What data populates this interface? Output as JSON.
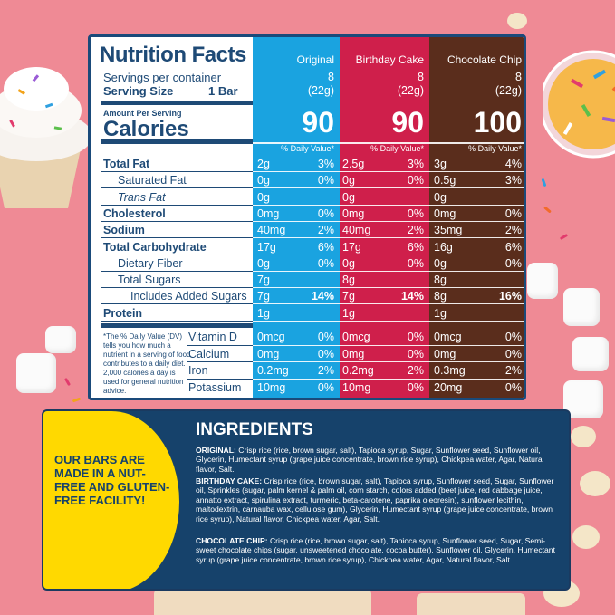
{
  "nutrition": {
    "title": "Nutrition Facts",
    "servings_label": "Servings per container",
    "serving_size_label": "Serving Size",
    "serving_size_value": "1 Bar",
    "amount_per_serving": "Amount Per Serving",
    "calories_label": "Calories",
    "dv_header": "% Daily Value*",
    "columns": [
      {
        "name": "Original",
        "servings": "8",
        "serving_grams": "(22g)",
        "calories": "90"
      },
      {
        "name": "Birthday Cake",
        "servings": "8",
        "serving_grams": "(22g)",
        "calories": "90"
      },
      {
        "name": "Chocolate Chip",
        "servings": "8",
        "serving_grams": "(22g)",
        "calories": "100"
      }
    ],
    "nutrients": [
      {
        "label": "Total Fat",
        "values": [
          "2g",
          "2.5g",
          "3g"
        ],
        "dv": [
          "3%",
          "3%",
          "4%"
        ]
      },
      {
        "label": "Saturated Fat",
        "values": [
          "0g",
          "0g",
          "0.5g"
        ],
        "dv": [
          "0%",
          "0%",
          "3%"
        ]
      },
      {
        "label": "Trans Fat",
        "values": [
          "0g",
          "0g",
          "0g"
        ],
        "dv": [
          "",
          "",
          ""
        ]
      },
      {
        "label": "Cholesterol",
        "values": [
          "0mg",
          "0mg",
          "0mg"
        ],
        "dv": [
          "0%",
          "0%",
          "0%"
        ]
      },
      {
        "label": "Sodium",
        "values": [
          "40mg",
          "40mg",
          "35mg"
        ],
        "dv": [
          "2%",
          "2%",
          "2%"
        ]
      },
      {
        "label": "Total Carbohydrate",
        "values": [
          "17g",
          "17g",
          "16g"
        ],
        "dv": [
          "6%",
          "6%",
          "6%"
        ]
      },
      {
        "label": "Dietary Fiber",
        "values": [
          "0g",
          "0g",
          "0g"
        ],
        "dv": [
          "0%",
          "0%",
          "0%"
        ]
      },
      {
        "label": "Total Sugars",
        "values": [
          "7g",
          "8g",
          "8g"
        ],
        "dv": [
          "",
          "",
          ""
        ]
      },
      {
        "label": "Includes Added Sugars",
        "values": [
          "7g",
          "7g",
          "8g"
        ],
        "dv": [
          "14%",
          "14%",
          "16%"
        ]
      },
      {
        "label": "Protein",
        "values": [
          "1g",
          "1g",
          "1g"
        ],
        "dv": [
          "",
          "",
          ""
        ]
      }
    ],
    "vitamins": [
      {
        "label": "Vitamin D",
        "values": [
          "0mcg",
          "0mcg",
          "0mcg"
        ],
        "dv": [
          "0%",
          "0%",
          "0%"
        ]
      },
      {
        "label": "Calcium",
        "values": [
          "0mg",
          "0mg",
          "0mg"
        ],
        "dv": [
          "0%",
          "0%",
          "0%"
        ]
      },
      {
        "label": "Iron",
        "values": [
          "0.2mg",
          "0.2mg",
          "0.3mg"
        ],
        "dv": [
          "2%",
          "2%",
          "2%"
        ]
      },
      {
        "label": "Potassium",
        "values": [
          "10mg",
          "10mg",
          "20mg"
        ],
        "dv": [
          "0%",
          "0%",
          "0%"
        ]
      }
    ],
    "footnote": "*The % Daily Value (DV) tells you how much a nutrient in a serving of food contributes to a daily diet. 2,000 calories a day is used for general nutrition advice."
  },
  "ingredients": {
    "claim": "OUR BARS ARE MADE IN A NUT-FREE AND GLUTEN-FREE FACILITY!",
    "title": "INGREDIENTS",
    "items": [
      {
        "label": "ORIGINAL:",
        "text": " Crisp rice (rice, brown sugar, salt), Tapioca syrup, Sugar, Sunflower seed, Sunflower oil, Glycerin, Humectant syrup (grape juice concentrate, brown rice syrup), Chickpea water, Agar, Natural flavor, Salt."
      },
      {
        "label": "BIRTHDAY CAKE:",
        "text": " Crisp rice (rice, brown sugar, salt), Tapioca syrup, Sunflower seed, Sugar, Sunflower oil, Sprinkles (sugar, palm kernel & palm oil, corn starch, colors added (beet juice, red cabbage juice, annatto extract, spirulina extract, turmeric, beta-carotene, paprika oleoresin), sunflower lecithin, maltodextrin, carnauba wax, cellulose gum), Glycerin, Humectant syrup (grape juice concentrate, brown rice syrup), Natural flavor, Chickpea water, Agar, Salt."
      },
      {
        "label": "CHOCOLATE CHIP:",
        "text": " Crisp rice (rice, brown sugar, salt), Tapioca syrup, Sunflower seed, Sugar, Semi-sweet chocolate chips (sugar, unsweetened chocolate, cocoa butter), Sunflower oil, Glycerin, Humectant syrup (grape juice concentrate, brown rice syrup), Chickpea water, Agar, Natural flavor, Salt."
      }
    ]
  },
  "colors": {
    "background": "#ef8a95",
    "original": "#1aa3e0",
    "birthday_cake": "#cf1f4b",
    "chocolate_chip": "#5a2d1c",
    "navy": "#1e4a76",
    "yellow": "#ffd900"
  }
}
